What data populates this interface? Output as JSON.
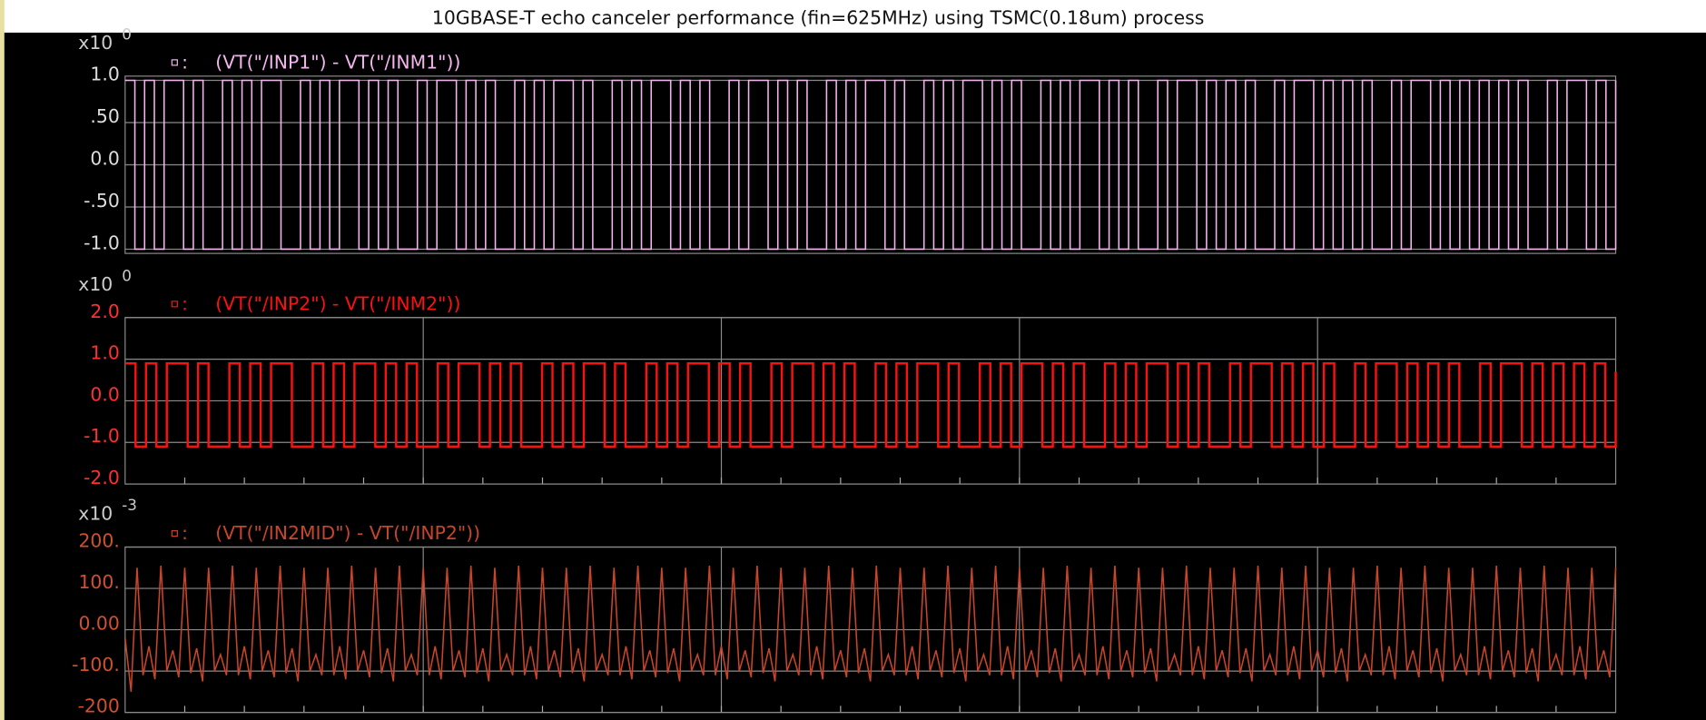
{
  "title": "10GBASE-T echo canceler performance (fin=625MHz) using TSMC(0.18um) process",
  "chart_data": [
    {
      "type": "line",
      "multiplier": "x10",
      "multiplier_power": "0",
      "grid": true,
      "step": true,
      "ylim": [
        -1.05,
        1.05
      ],
      "yticks": [
        {
          "value": 1,
          "label": "1.0"
        },
        {
          "value": 0.5,
          "label": ".50"
        },
        {
          "value": 0,
          "label": "0.0"
        },
        {
          "value": -0.5,
          "label": "-.50"
        },
        {
          "value": -1,
          "label": "-1.0"
        }
      ],
      "series": [
        {
          "name": "(VT(\"/INP1\") - VT(\"/INM1\"))",
          "color": "#f4b4ee",
          "values": [
            1,
            -1,
            1,
            -1,
            1,
            1,
            -1,
            1,
            -1,
            -1,
            1,
            -1,
            1,
            -1,
            1,
            1,
            -1,
            -1,
            1,
            -1,
            1,
            -1,
            1,
            1,
            -1,
            1,
            -1,
            1,
            -1,
            -1,
            1,
            -1,
            1,
            1,
            -1,
            1,
            -1,
            1,
            -1,
            -1,
            1,
            -1,
            1,
            -1,
            1,
            1,
            -1,
            1,
            -1,
            -1,
            1,
            -1,
            1,
            -1,
            1,
            1,
            -1,
            1,
            -1,
            1,
            -1,
            -1,
            1,
            -1,
            1,
            1,
            -1,
            1,
            -1,
            1,
            -1,
            -1,
            1,
            -1,
            1,
            -1,
            1,
            1,
            -1,
            1,
            -1,
            -1,
            1,
            -1,
            1,
            -1,
            1,
            1,
            -1,
            1,
            -1,
            1,
            -1,
            -1,
            1,
            -1,
            1,
            -1,
            1,
            1,
            -1,
            1,
            -1,
            1,
            -1,
            -1,
            1,
            -1,
            1,
            1,
            -1,
            1,
            -1,
            1,
            -1,
            1,
            -1,
            -1,
            1,
            -1,
            1,
            1,
            -1,
            1,
            -1,
            1,
            -1,
            1,
            -1,
            -1,
            1,
            -1,
            1,
            1,
            -1,
            1,
            -1,
            1,
            -1,
            1,
            -1,
            1,
            -1,
            1,
            -1,
            -1,
            1,
            -1,
            1,
            1,
            -1,
            1,
            -1,
            1
          ]
        }
      ]
    },
    {
      "type": "line",
      "multiplier": "x10",
      "multiplier_power": "0",
      "grid": true,
      "step": true,
      "ylim": [
        -2,
        2
      ],
      "yticks": [
        {
          "value": 2,
          "label": "2.0"
        },
        {
          "value": 1,
          "label": "1.0"
        },
        {
          "value": 0,
          "label": "0.0"
        },
        {
          "value": -1,
          "label": "-1.0"
        },
        {
          "value": -2,
          "label": "-2.0"
        }
      ],
      "series": [
        {
          "name": "(VT(\"/INP2\") - VT(\"/INM2\"))",
          "color": "#ff1010",
          "values": [
            0.9,
            -1.1,
            0.9,
            -1.1,
            0.9,
            0.9,
            -1.1,
            0.9,
            -1.1,
            -1.1,
            0.9,
            -1.1,
            0.9,
            -1.1,
            0.9,
            0.9,
            -1.1,
            -1.1,
            0.9,
            -1.1,
            0.9,
            -1.1,
            0.9,
            0.9,
            -1.1,
            0.9,
            -1.1,
            0.9,
            -1.1,
            -1.1,
            0.9,
            -1.1,
            0.9,
            0.9,
            -1.1,
            0.9,
            -1.1,
            0.9,
            -1.1,
            -1.1,
            0.9,
            -1.1,
            0.9,
            -1.1,
            0.9,
            0.9,
            -1.1,
            0.9,
            -1.1,
            -1.1,
            0.9,
            -1.1,
            0.9,
            -1.1,
            0.9,
            0.9,
            -1.1,
            0.9,
            -1.1,
            0.9,
            -1.1,
            -1.1,
            0.9,
            -1.1,
            0.9,
            0.9,
            -1.1,
            0.9,
            -1.1,
            0.9,
            -1.1,
            -1.1,
            0.9,
            -1.1,
            0.9,
            -1.1,
            0.9,
            0.9,
            -1.1,
            0.9,
            -1.1,
            -1.1,
            0.9,
            -1.1,
            0.9,
            -1.1,
            0.9,
            0.9,
            -1.1,
            0.9,
            -1.1,
            0.9,
            -1.1,
            -1.1,
            0.9,
            -1.1,
            0.9,
            -1.1,
            0.9,
            0.9,
            -1.1,
            0.9,
            -1.1,
            0.9,
            -1.1,
            -1.1,
            0.9,
            -1.1,
            0.9,
            0.9,
            -1.1,
            0.9,
            -1.1,
            0.9,
            -1.1,
            0.9,
            -1.1,
            -1.1,
            0.9,
            -1.1,
            0.9,
            0.9,
            -1.1,
            0.9,
            -1.1,
            0.9,
            -1.1,
            0.9,
            -1.1,
            -1.1,
            0.9,
            -1.1,
            0.9,
            0.9,
            -1.1,
            0.9,
            -1.1,
            0.9,
            -1.1,
            0.9,
            -1.1,
            0.9,
            -1.1,
            0.7
          ]
        }
      ]
    },
    {
      "type": "line",
      "multiplier": "x10",
      "multiplier_power": "-3",
      "grid": true,
      "step": false,
      "ylim": [
        -200,
        200
      ],
      "yticks": [
        {
          "value": 200,
          "label": "200."
        },
        {
          "value": 100,
          "label": "100."
        },
        {
          "value": 0,
          "label": "0.00"
        },
        {
          "value": -100,
          "label": "-100."
        },
        {
          "value": -200,
          "label": "-200"
        }
      ],
      "series": [
        {
          "name": "(VT(\"/IN2MID\") - VT(\"/INP2\"))",
          "color": "#c8452a",
          "values": [
            -20,
            -150,
            150,
            -110,
            -40,
            -120,
            155,
            -100,
            -50,
            -115,
            150,
            -105,
            -45,
            -125,
            150,
            -100,
            -60,
            -110,
            155,
            -110,
            -40,
            -120,
            150,
            -100,
            -50,
            -115,
            155,
            -105,
            -45,
            -125,
            150,
            -100,
            -60,
            -110,
            150,
            -110,
            -40,
            -120,
            155,
            -100,
            -50,
            -115,
            150,
            -105,
            -45,
            -125,
            155,
            -100,
            -60,
            -110,
            150,
            -110,
            -40,
            -120,
            150,
            -100,
            -50,
            -115,
            155,
            -105,
            -45,
            -125,
            150,
            -100,
            -60,
            -110,
            155,
            -110,
            -40,
            -120,
            150,
            -100,
            -50,
            -115,
            150,
            -105,
            -45,
            -125,
            155,
            -100,
            -60,
            -110,
            150,
            -110,
            -40,
            -120,
            155,
            -100,
            -50,
            -115,
            150,
            -105,
            -45,
            -125,
            150,
            -100,
            -60,
            -110,
            155,
            -110,
            -40,
            -120,
            150,
            -100,
            -50,
            -115,
            155,
            -105,
            -45,
            -125,
            150,
            -100,
            -60,
            -110,
            150,
            -110,
            -40,
            -120,
            155,
            -100,
            -50,
            -115,
            150,
            -105,
            -45,
            -125,
            155,
            -100,
            -60,
            -110,
            150,
            -110,
            -40,
            -120,
            150,
            -100,
            -50,
            -115,
            155,
            -105,
            -45,
            -125,
            150,
            -100,
            -60,
            -110,
            155,
            -110,
            -40,
            -120,
            150,
            -100,
            -50,
            -115,
            150,
            -105,
            -45,
            -125,
            155,
            -100,
            -60,
            -110,
            150,
            -110,
            -40,
            -120,
            155,
            -100,
            -50,
            -115,
            150,
            -105,
            -45,
            -125,
            150,
            -100,
            -60,
            -110,
            155,
            -110,
            -40,
            -120,
            150,
            -100,
            -50,
            -115,
            150,
            -105,
            -45,
            -125,
            155,
            -100,
            -60,
            -110,
            150,
            -110,
            -40,
            -120,
            155,
            -100,
            -50,
            -115,
            150,
            -105,
            -45,
            -125,
            150,
            -100,
            -60,
            -110,
            155,
            -110,
            -40,
            -120,
            150,
            -100,
            -50,
            -115,
            155,
            -105,
            -45,
            -125,
            150,
            -100,
            -60,
            -110,
            150,
            -110,
            -40,
            -120,
            155,
            -100,
            -50,
            -115,
            150,
            -105,
            -45,
            -125,
            155,
            -100,
            -60,
            -110,
            150,
            -110,
            -40,
            -120,
            150,
            -100,
            -50,
            -115,
            150
          ]
        }
      ]
    }
  ]
}
